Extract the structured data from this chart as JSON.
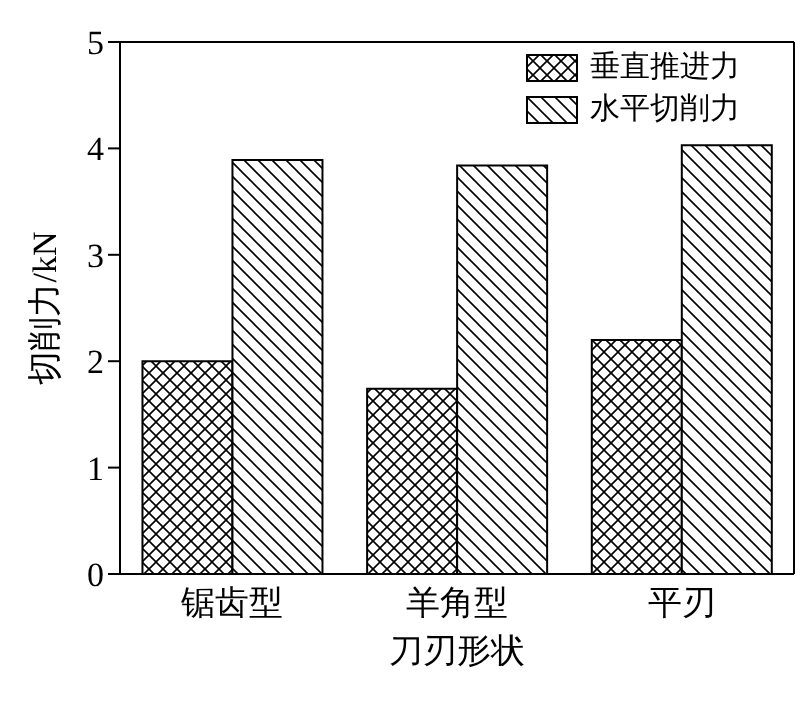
{
  "chart_data": {
    "type": "bar",
    "xlabel": "刀刃形状",
    "ylabel": "切削力/kN",
    "categories": [
      "锯齿型",
      "羊角型",
      "平刃"
    ],
    "series": [
      {
        "name": "垂直推进力",
        "color": "#000000",
        "values": [
          2.0,
          1.74,
          2.2
        ]
      },
      {
        "name": "水平切削力",
        "color": "#000000",
        "values": [
          3.89,
          3.84,
          4.03
        ]
      }
    ],
    "ylim": [
      0,
      5
    ],
    "yticks": [
      0,
      1,
      2,
      3,
      4,
      5
    ],
    "legend": "top right"
  }
}
